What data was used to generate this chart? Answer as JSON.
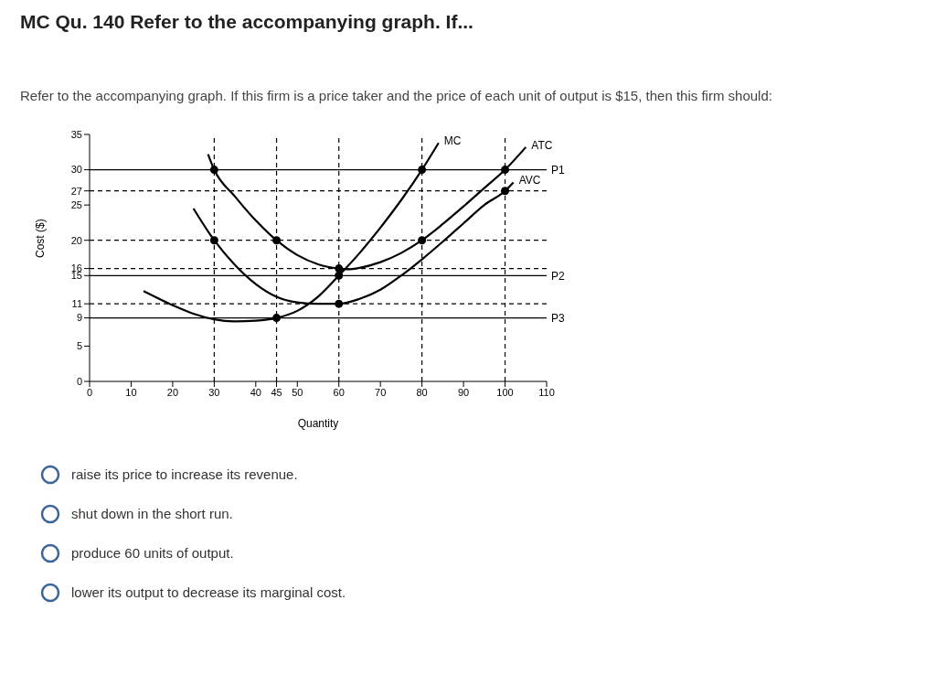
{
  "chart_data": {
    "type": "line",
    "title": "MC Qu. 140 Refer to the accompanying graph. If...",
    "subtitle": "Refer to the accompanying graph. If this firm is a price taker and the price of each unit of output is $15, then this firm should:",
    "xlabel": "Quantity",
    "ylabel": "Cost ($)",
    "xlim": [
      0,
      110
    ],
    "xticks": [
      0,
      10,
      20,
      30,
      40,
      45,
      50,
      60,
      70,
      80,
      90,
      100,
      110
    ],
    "ylim": [
      0,
      35
    ],
    "yticks": [
      0,
      5,
      9,
      11,
      15,
      16,
      20,
      25,
      27,
      30,
      35
    ],
    "grid": false,
    "legend": false,
    "marker": "none",
    "line_style": "solid",
    "series": [
      {
        "name": "MC",
        "color": "#000000",
        "x": [
          13,
          20,
          25,
          30,
          35,
          40,
          45,
          50,
          55,
          60,
          65,
          70,
          75,
          80,
          84
        ],
        "values": [
          12.8,
          10.8,
          9.6,
          8.8,
          8.5,
          8.6,
          9,
          10,
          12,
          15,
          18.2,
          21.8,
          25.7,
          30,
          33.8
        ]
      },
      {
        "name": "ATC",
        "color": "#000000",
        "x": [
          28.5,
          30,
          35,
          40,
          45,
          50,
          55,
          60,
          62,
          65,
          70,
          75,
          80,
          85,
          90,
          95,
          100,
          105
        ],
        "values": [
          32.2,
          30,
          26.2,
          22.8,
          20,
          17.9,
          16.6,
          16,
          15.9,
          16.1,
          16.9,
          18.2,
          20,
          22.3,
          24.8,
          27.4,
          30,
          33.2
        ]
      },
      {
        "name": "AVC",
        "color": "#000000",
        "x": [
          25,
          30,
          35,
          40,
          45,
          50,
          55,
          60,
          65,
          70,
          75,
          80,
          85,
          90,
          95,
          100,
          102
        ],
        "values": [
          24.5,
          20,
          16.5,
          13.8,
          12,
          11.2,
          11,
          11,
          11.7,
          13,
          15,
          17.3,
          19.8,
          22.4,
          25,
          27,
          28.2
        ]
      },
      {
        "type": "scatter",
        "color": "#000000",
        "marker": "circle",
        "x": [
          30,
          30,
          45,
          45,
          60,
          60,
          60,
          80,
          80,
          100,
          100
        ],
        "values": [
          30,
          20,
          20,
          9,
          16,
          15,
          11,
          30,
          20,
          30,
          27
        ]
      }
    ],
    "ref_lines": [
      {
        "axis": "y",
        "value": 30,
        "label": "P1",
        "line_style": "solid",
        "color": "#000000"
      },
      {
        "axis": "y",
        "value": 15,
        "label": "P2",
        "line_style": "solid",
        "color": "#000000"
      },
      {
        "axis": "y",
        "value": 9,
        "label": "P3",
        "line_style": "solid",
        "color": "#000000"
      },
      {
        "axis": "y",
        "value": 27,
        "line_style": "dashed",
        "color": "#000000"
      },
      {
        "axis": "y",
        "value": 20,
        "line_style": "dashed",
        "color": "#000000"
      },
      {
        "axis": "y",
        "value": 16,
        "line_style": "dashed",
        "color": "#000000"
      },
      {
        "axis": "y",
        "value": 11,
        "line_style": "dashed",
        "color": "#000000"
      },
      {
        "axis": "x",
        "value": 30,
        "line_style": "dashed",
        "color": "#000000"
      },
      {
        "axis": "x",
        "value": 45,
        "line_style": "dashed",
        "color": "#000000"
      },
      {
        "axis": "x",
        "value": 60,
        "line_style": "dashed",
        "color": "#000000"
      },
      {
        "axis": "x",
        "value": 80,
        "line_style": "dashed",
        "color": "#000000"
      },
      {
        "axis": "x",
        "value": 100,
        "line_style": "dashed",
        "color": "#000000"
      }
    ],
    "annotations": [
      "raise its price to increase its revenue.",
      "shut down in the short run.",
      "produce 60 units of output.",
      "lower its output to decrease its marginal cost."
    ]
  }
}
